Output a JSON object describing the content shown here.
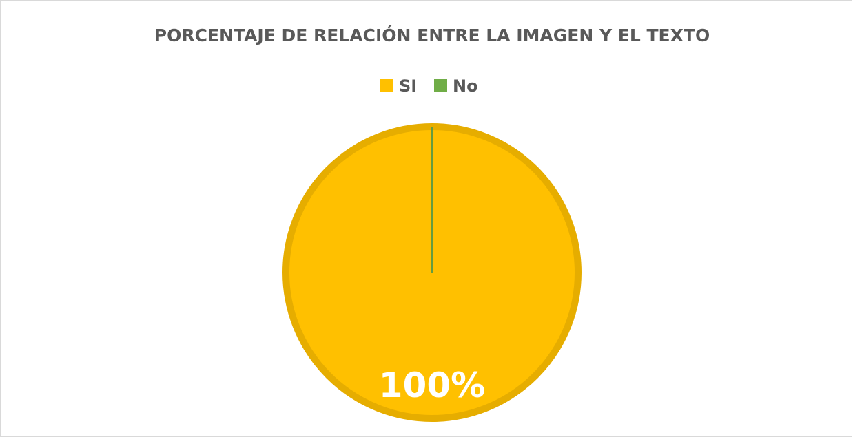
{
  "chart_data": {
    "type": "pie",
    "title": "PORCENTAJE DE RELACIÓN ENTRE LA IMAGEN Y EL TEXTO",
    "categories": [
      "SI",
      "No"
    ],
    "values": [
      100,
      0
    ],
    "value_labels": [
      "100%",
      null
    ],
    "colors": [
      "#ffc000",
      "#70ad47"
    ],
    "legend": "top"
  }
}
